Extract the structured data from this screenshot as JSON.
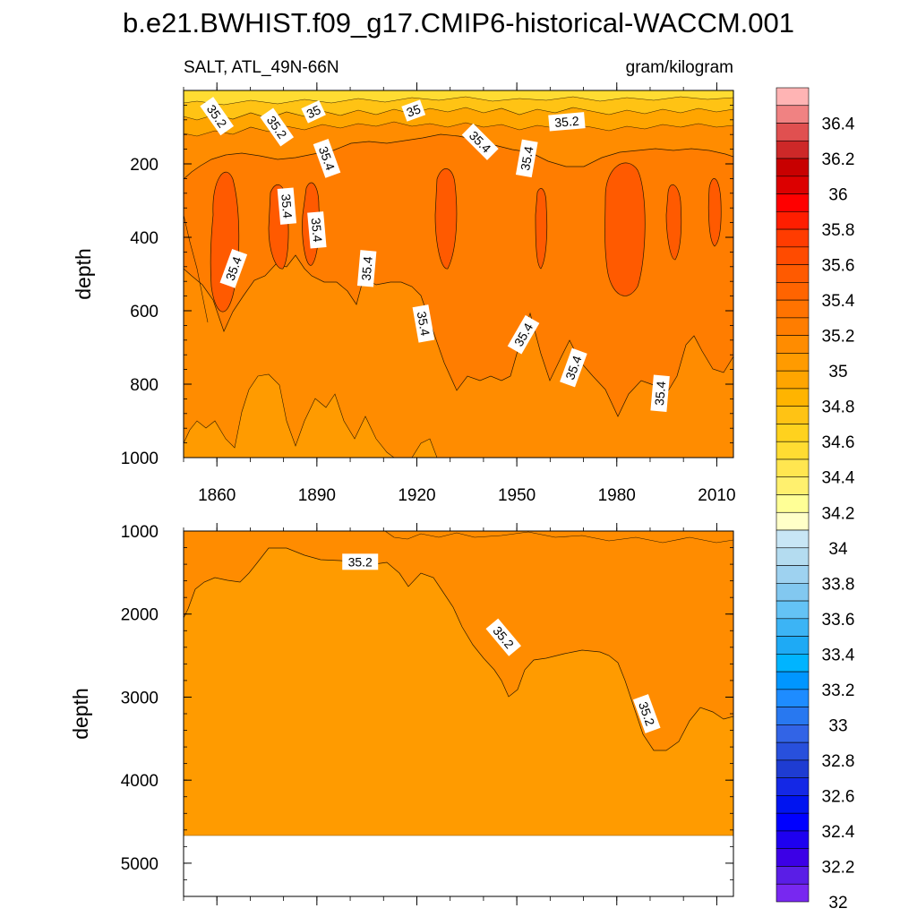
{
  "chart_data": {
    "type": "contour",
    "title": "b.e21.BWHIST.f09_g17.CMIP6-historical-WACCM.001",
    "variable_label": "SALT, ATL_49N-66N",
    "units_label": "gram/kilogram",
    "panels": [
      {
        "id": "upper",
        "ylabel": "depth",
        "ylim": [
          0,
          1000
        ],
        "y_inverted": true,
        "yticks": [
          "200",
          "400",
          "600",
          "800",
          "1000"
        ],
        "xlim": [
          1850,
          2015
        ],
        "xticks": [
          "1860",
          "1890",
          "1920",
          "1950",
          "1980",
          "2010"
        ],
        "contour_labels": [
          "35.2",
          "35.2",
          "35",
          "35",
          "35.2",
          "35.4",
          "35.4",
          "35.4",
          "35.4",
          "35.4",
          "35.4",
          "35.4",
          "35.4",
          "35.4",
          "35.4",
          "35.4"
        ],
        "contour_label_positions": [
          {
            "x": 1860,
            "y": 70
          },
          {
            "x": 1878,
            "y": 100
          },
          {
            "x": 1889,
            "y": 58
          },
          {
            "x": 1919,
            "y": 55
          },
          {
            "x": 1965,
            "y": 85
          },
          {
            "x": 1939,
            "y": 140
          },
          {
            "x": 1893,
            "y": 185
          },
          {
            "x": 1953,
            "y": 185
          },
          {
            "x": 1881,
            "y": 315
          },
          {
            "x": 1890,
            "y": 380
          },
          {
            "x": 1865,
            "y": 485
          },
          {
            "x": 1905,
            "y": 485
          },
          {
            "x": 1922,
            "y": 635
          },
          {
            "x": 1952,
            "y": 665
          },
          {
            "x": 1967,
            "y": 755
          },
          {
            "x": 1993,
            "y": 825
          }
        ]
      },
      {
        "id": "lower",
        "ylabel": "depth",
        "ylim": [
          1000,
          5400
        ],
        "y_inverted": true,
        "yticks": [
          "1000",
          "2000",
          "3000",
          "4000",
          "5000"
        ],
        "ocean_floor_depth": 4600,
        "contour_labels": [
          "35.2",
          "35.2",
          "35.2"
        ],
        "contour_label_positions": [
          {
            "x": 1903,
            "y": 1370
          },
          {
            "x": 1946,
            "y": 2280
          },
          {
            "x": 1989,
            "y": 3200
          }
        ]
      }
    ],
    "colorbar": {
      "labels": [
        "36.4",
        "36.2",
        "36",
        "35.8",
        "35.6",
        "35.4",
        "35.2",
        "35",
        "34.8",
        "34.6",
        "34.4",
        "34.2",
        "34",
        "33.8",
        "33.6",
        "33.4",
        "33.2",
        "33",
        "32.8",
        "32.6",
        "32.4",
        "32.2",
        "32"
      ],
      "colors_top_to_bottom": [
        "#ffb4b4",
        "#f08282",
        "#e05050",
        "#cd2828",
        "#c80000",
        "#dc0000",
        "#ff0000",
        "#ff1e00",
        "#ff3c00",
        "#ff4b00",
        "#ff5a00",
        "#ff6400",
        "#ff7300",
        "#ff7d00",
        "#ff8c00",
        "#ff9b00",
        "#ffa500",
        "#ffb400",
        "#ffc314",
        "#ffd21e",
        "#ffdc32",
        "#ffe650",
        "#fff06e",
        "#ffff96",
        "#ffffc8",
        "#c8e6f5",
        "#b4dcf0",
        "#9ed2f0",
        "#82c8f0",
        "#64c3f5",
        "#3cb4f5",
        "#1eaaf5",
        "#00b4ff",
        "#0096ff",
        "#1e8cff",
        "#2878f0",
        "#3264e6",
        "#2850dc",
        "#1e3cd2",
        "#1428e6",
        "#0014f0",
        "#0000ff",
        "#1e00f0",
        "#3c00e6",
        "#5a1ee6",
        "#7828f0"
      ]
    }
  }
}
